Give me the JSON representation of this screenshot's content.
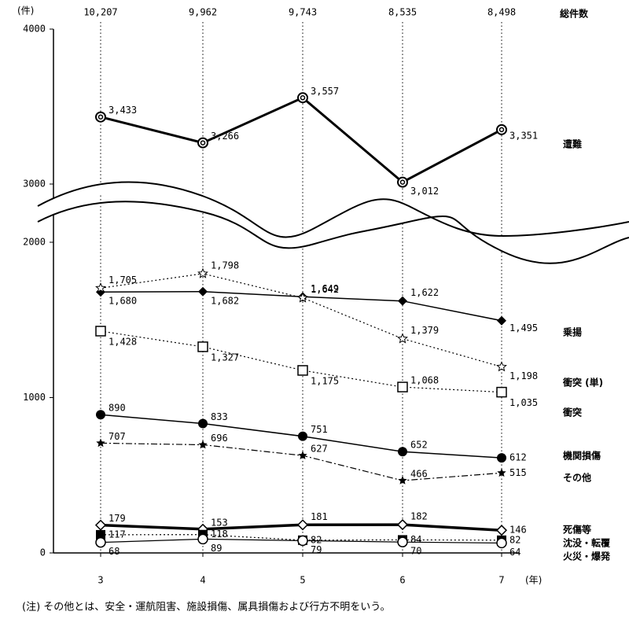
{
  "chart_data": {
    "type": "line",
    "y_unit": "(件)",
    "x_unit": "(年)",
    "categories": [
      "3",
      "4",
      "5",
      "6",
      "7"
    ],
    "totals": {
      "name": "総件数",
      "values": [
        10207,
        9962,
        9743,
        8535,
        8498
      ],
      "value_labels": [
        "10,207",
        "9,962",
        "9,743",
        "8,535",
        "8,498"
      ]
    },
    "ylim": [
      0,
      4000
    ],
    "yticks": [
      0,
      1000,
      2000,
      3000,
      4000
    ],
    "axis_break": [
      2000,
      3000
    ],
    "series": [
      {
        "name": "遭難",
        "color": "#000",
        "line_style": "solid",
        "width": 3,
        "marker": "double-circle",
        "values": [
          3433,
          3266,
          3557,
          3012,
          3351
        ],
        "value_labels": [
          "3,433",
          "3,266",
          "3,557",
          "3,012",
          "3,351"
        ]
      },
      {
        "name": "乗揚",
        "color": "#000",
        "line_style": "solid",
        "width": 1.5,
        "marker": "filled-diamond",
        "values": [
          1680,
          1682,
          1649,
          1622,
          1495
        ],
        "value_labels": [
          "1,680",
          "1,682",
          "1,649",
          "1,622",
          "1,495"
        ]
      },
      {
        "name": "衝突 (単)",
        "color": "#000",
        "line_style": "dotted",
        "width": 1.2,
        "marker": "open-star",
        "values": [
          1705,
          1798,
          1642,
          1379,
          1198
        ],
        "value_labels": [
          "1,705",
          "1,798",
          "1,642",
          "1,379",
          "1,198"
        ]
      },
      {
        "name": "衝突",
        "color": "#000",
        "line_style": "dotted",
        "width": 1.2,
        "marker": "open-square",
        "values": [
          1428,
          1327,
          1175,
          1068,
          1035
        ],
        "value_labels": [
          "1,428",
          "1,327",
          "1,175",
          "1,068",
          "1,035"
        ]
      },
      {
        "name": "機関損傷",
        "color": "#000",
        "line_style": "solid",
        "width": 1.5,
        "marker": "filled-circle",
        "values": [
          890,
          833,
          751,
          652,
          612
        ]
      },
      {
        "name": "その他",
        "color": "#000",
        "line_style": "dashdot",
        "width": 1.2,
        "marker": "filled-star",
        "values": [
          707,
          696,
          627,
          466,
          515
        ]
      },
      {
        "name": "死傷等",
        "color": "#000",
        "line_style": "solid",
        "width": 3.5,
        "marker": "open-diamond",
        "values": [
          179,
          153,
          181,
          182,
          146
        ]
      },
      {
        "name": "沈没・転覆",
        "color": "#000",
        "line_style": "dotted",
        "width": 1.2,
        "marker": "filled-square",
        "values": [
          117,
          118,
          82,
          84,
          82
        ]
      },
      {
        "name": "火災・爆発",
        "color": "#000",
        "line_style": "solid",
        "width": 1.2,
        "marker": "open-circle",
        "values": [
          68,
          89,
          79,
          70,
          64
        ]
      }
    ],
    "note": "(注) その他とは、安全・運航阻害、施設損傷、属具損傷および行方不明をいう。"
  }
}
